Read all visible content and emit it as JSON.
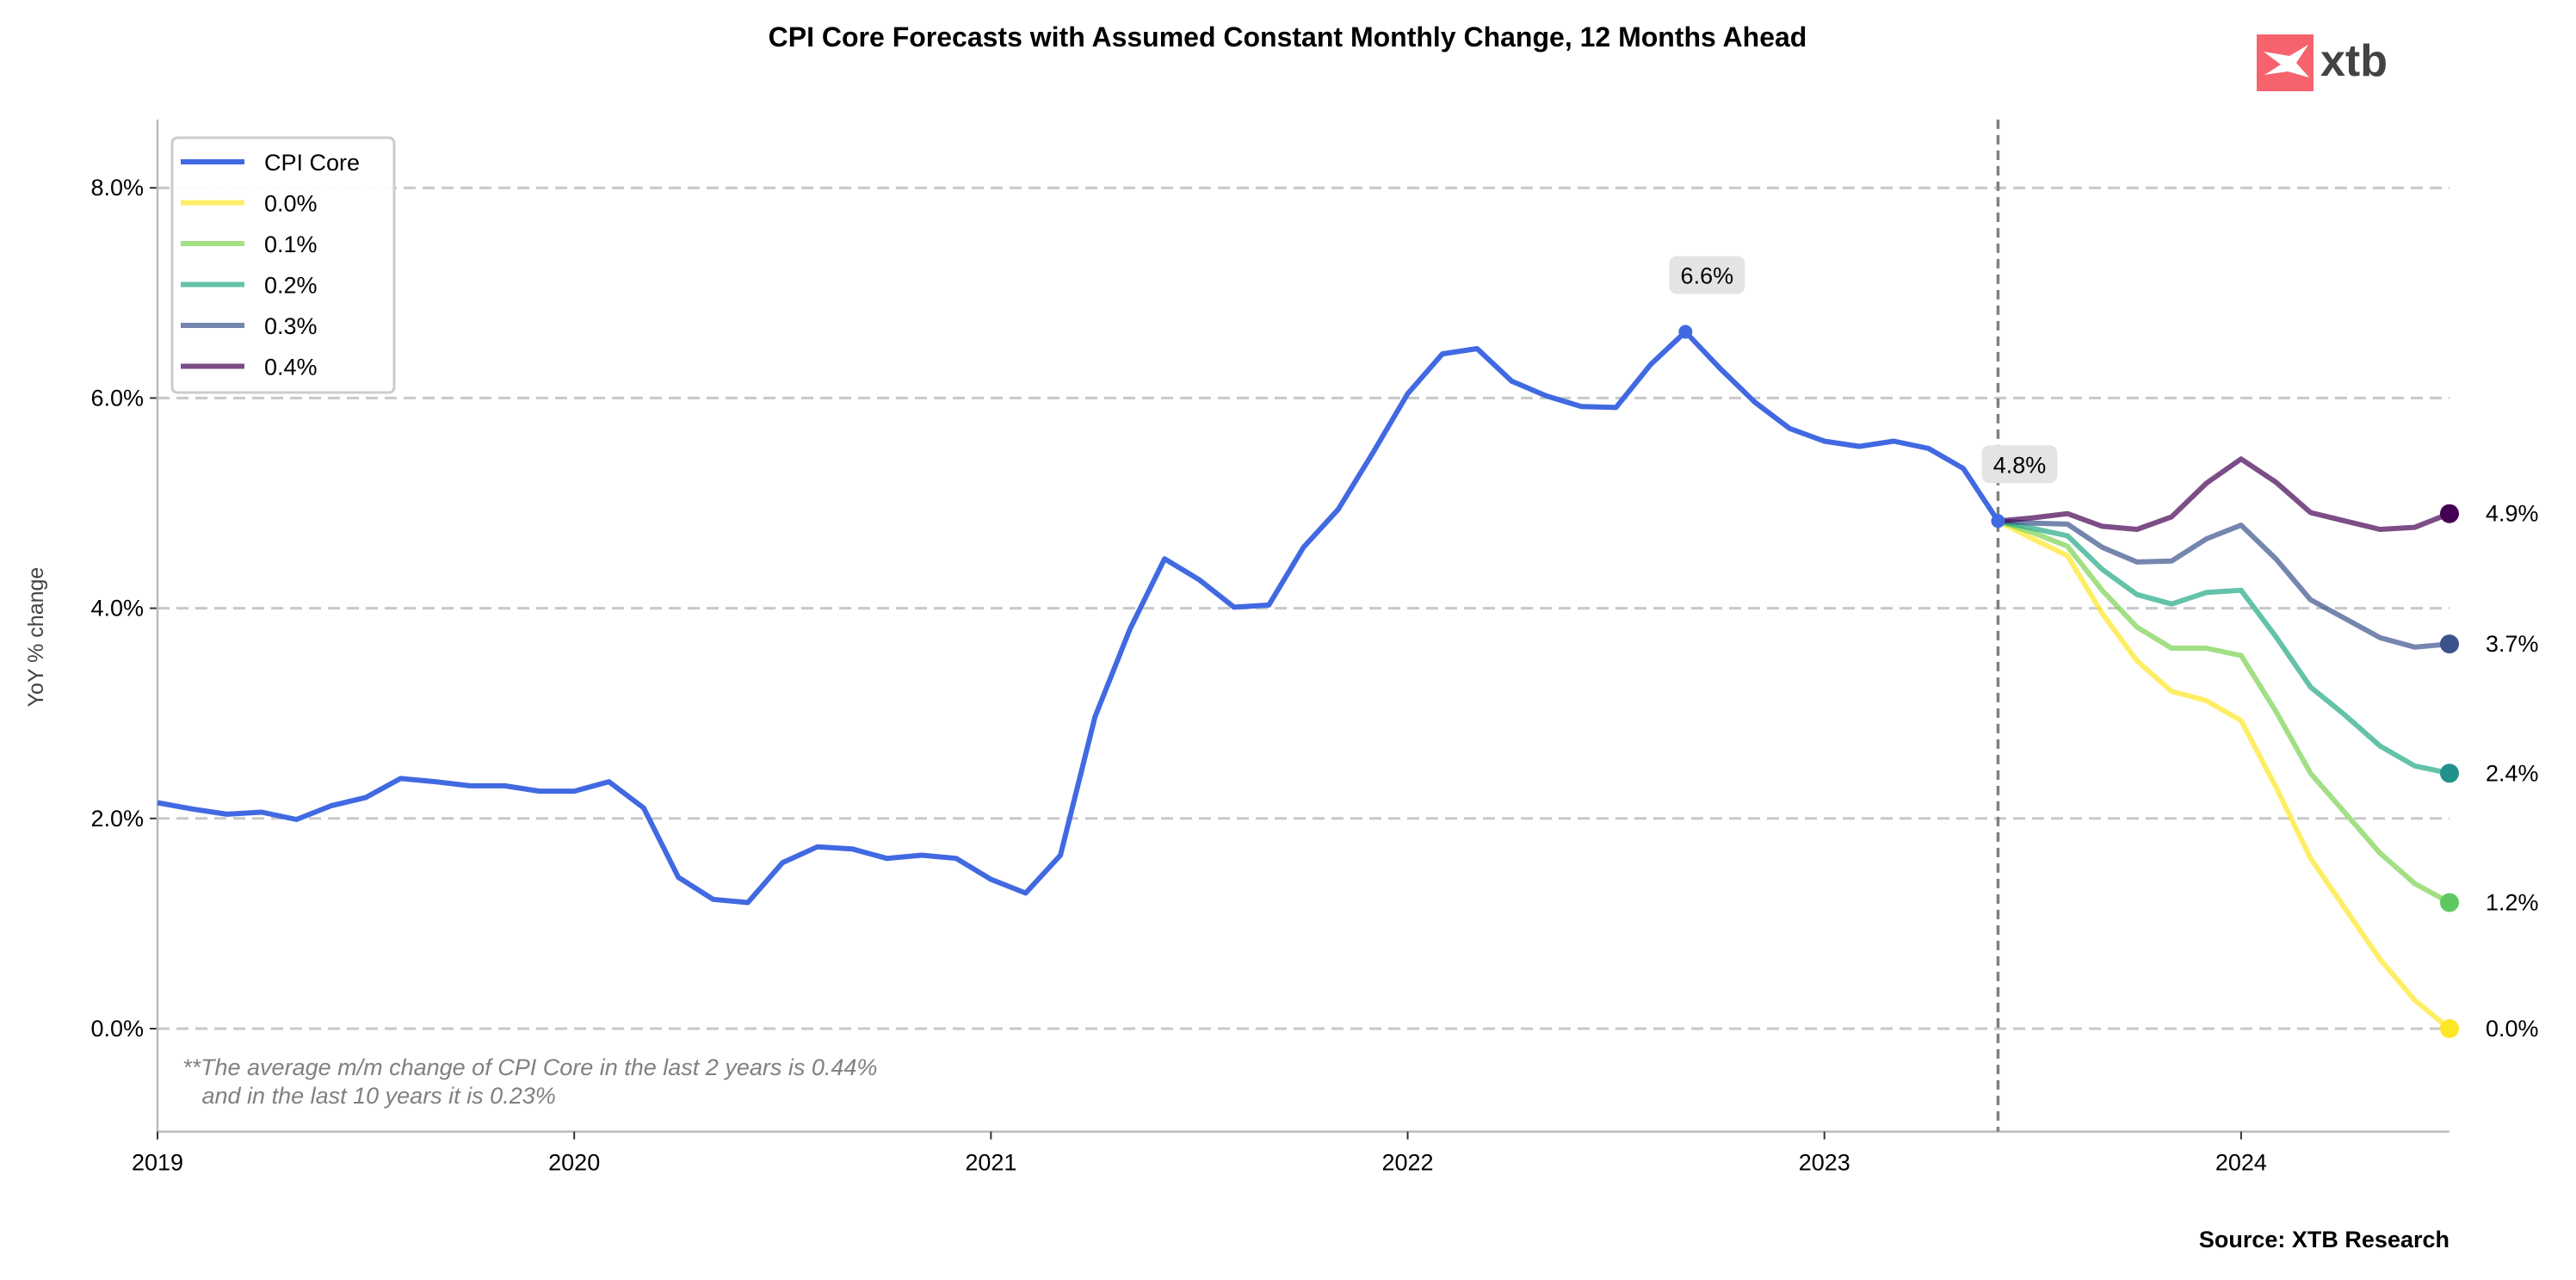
{
  "chart_data": {
    "type": "line",
    "title": "CPI Core Forecasts with Assumed Constant Monthly Change, 12 Months Ahead",
    "xlabel": "",
    "ylabel": "YoY % change",
    "xlim": [
      "2019-01",
      "2024-07"
    ],
    "ylim": [
      -0.98,
      8.65
    ],
    "x_ticks": [
      "2019",
      "2020",
      "2021",
      "2022",
      "2023",
      "2024"
    ],
    "y_ticks": [
      "0.0%",
      "2.0%",
      "4.0%",
      "6.0%",
      "8.0%"
    ],
    "y_tick_values": [
      0,
      2,
      4,
      6,
      8
    ],
    "grid": "horizontal dashed",
    "legend_position": "top-left",
    "vertical_marker": "2023-06",
    "series": [
      {
        "name": "CPI Core",
        "color": "#4169e1",
        "start": "2019-01",
        "values": [
          2.15,
          2.09,
          2.04,
          2.06,
          1.99,
          2.12,
          2.2,
          2.38,
          2.35,
          2.31,
          2.31,
          2.26,
          2.26,
          2.35,
          2.1,
          1.44,
          1.23,
          1.2,
          1.58,
          1.73,
          1.71,
          1.62,
          1.65,
          1.62,
          1.42,
          1.29,
          1.65,
          2.97,
          3.8,
          4.47,
          4.27,
          4.01,
          4.03,
          4.58,
          4.94,
          5.48,
          6.04,
          6.42,
          6.47,
          6.16,
          6.02,
          5.92,
          5.91,
          6.32,
          6.63,
          6.28,
          5.96,
          5.71,
          5.59,
          5.54,
          5.59,
          5.52,
          5.33,
          4.83
        ]
      },
      {
        "name": "0.0%",
        "color": "#fde725",
        "end_color": "#fde725",
        "start": "2023-06",
        "values": [
          4.83,
          4.66,
          4.5,
          3.95,
          3.5,
          3.21,
          3.12,
          2.93,
          2.3,
          1.62,
          1.14,
          0.66,
          0.27,
          0.0
        ]
      },
      {
        "name": "0.1%",
        "color": "#7ad151",
        "end_color": "#5ec962",
        "start": "2023-06",
        "values": [
          4.83,
          4.72,
          4.59,
          4.17,
          3.82,
          3.62,
          3.62,
          3.55,
          3.02,
          2.43,
          2.05,
          1.67,
          1.38,
          1.2
        ]
      },
      {
        "name": "0.2%",
        "color": "#22a884",
        "end_color": "#21918c",
        "start": "2023-06",
        "values": [
          4.83,
          4.76,
          4.69,
          4.37,
          4.13,
          4.04,
          4.15,
          4.17,
          3.73,
          3.25,
          2.98,
          2.69,
          2.5,
          2.43
        ]
      },
      {
        "name": "0.3%",
        "color": "#3b528b",
        "end_color": "#3b528b",
        "start": "2023-06",
        "values": [
          4.83,
          4.81,
          4.8,
          4.58,
          4.44,
          4.45,
          4.66,
          4.79,
          4.47,
          4.08,
          3.9,
          3.72,
          3.63,
          3.66
        ]
      },
      {
        "name": "0.4%",
        "color": "#440154",
        "end_color": "#440154",
        "start": "2023-06",
        "values": [
          4.83,
          4.86,
          4.9,
          4.78,
          4.75,
          4.87,
          5.19,
          5.42,
          5.2,
          4.91,
          4.83,
          4.75,
          4.77,
          4.9
        ]
      }
    ],
    "end_labels": [
      "0.0%",
      "1.2%",
      "2.4%",
      "3.7%",
      "4.9%"
    ],
    "annotations": [
      {
        "text": "6.6%",
        "x": "2022-09",
        "y": 6.63
      },
      {
        "text": "4.8%",
        "x": "2023-06",
        "y": 4.83
      }
    ],
    "note_lines": [
      "**The average m/m change of CPI Core in the last 2 years is 0.44%",
      "   and in the last 10 years it is 0.23%"
    ],
    "source": "Source: XTB Research"
  },
  "logo": {
    "text": "xtb",
    "color": "#f6636d",
    "text_color": "#434346"
  }
}
